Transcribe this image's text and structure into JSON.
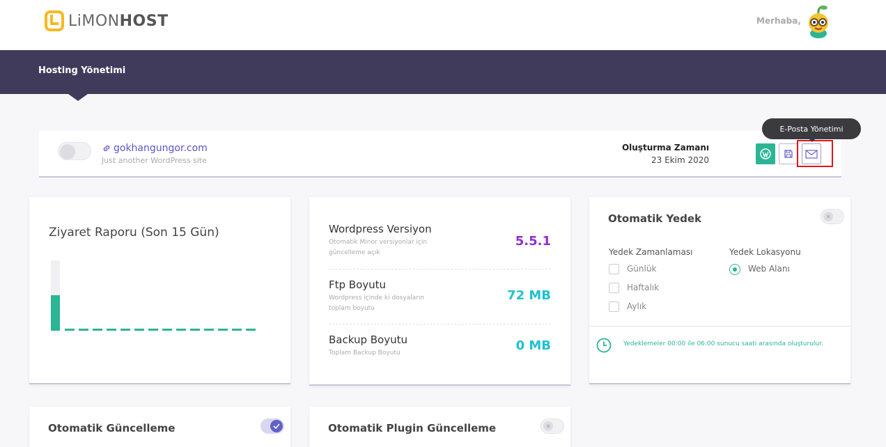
{
  "brand": {
    "name_part1": "LiMON",
    "name_part2": "HOST",
    "logo_color": "#f5b921"
  },
  "header": {
    "greeting": "Merhaba,"
  },
  "nav": {
    "title": "Hosting Yönetimi"
  },
  "site": {
    "domain": "gokhangungor.com",
    "description": "Just another WordPress site",
    "created_label": "Oluşturma Zamanı",
    "created_date": "23 Ekim 2020",
    "tooltip": "E-Posta Yönetimi"
  },
  "visit_report": {
    "title": "Ziyaret Raporu (Son 15 Gün)",
    "daily_visits_relative": [
      0.5,
      0,
      0,
      0,
      0,
      0,
      0,
      0,
      0,
      0,
      0,
      0,
      0,
      0,
      0
    ]
  },
  "info": {
    "rows": [
      {
        "title": "Wordpress Versiyon",
        "subtitle": "Otomatik Minor versiyonlar için güncelleme açık",
        "value": "5.5.1",
        "color": "#8b2fd3"
      },
      {
        "title": "Ftp Boyutu",
        "subtitle": "Wordpress içinde ki dosyaların toplam boyutu",
        "value": "72 MB",
        "color": "#1fc1cf"
      },
      {
        "title": "Backup Boyutu",
        "subtitle": "Toplam Backup Boyutu",
        "value": "0 MB",
        "color": "#1fc1cf"
      }
    ]
  },
  "backup": {
    "title": "Otomatik Yedek",
    "schedule_label": "Yedek Zamanlaması",
    "location_label": "Yedek Lokasyonu",
    "options": [
      "Günlük",
      "Haftalık",
      "Aylık"
    ],
    "location_option": "Web Alanı",
    "note": "Yedeklemeler 00:00 ile 06:00 sunucu saati arasında oluşturulur."
  },
  "auto_update": {
    "title": "Otomatik Güncelleme",
    "enabled": true
  },
  "plugin_update": {
    "title": "Otomatik Plugin Güncelleme",
    "enabled": false
  }
}
